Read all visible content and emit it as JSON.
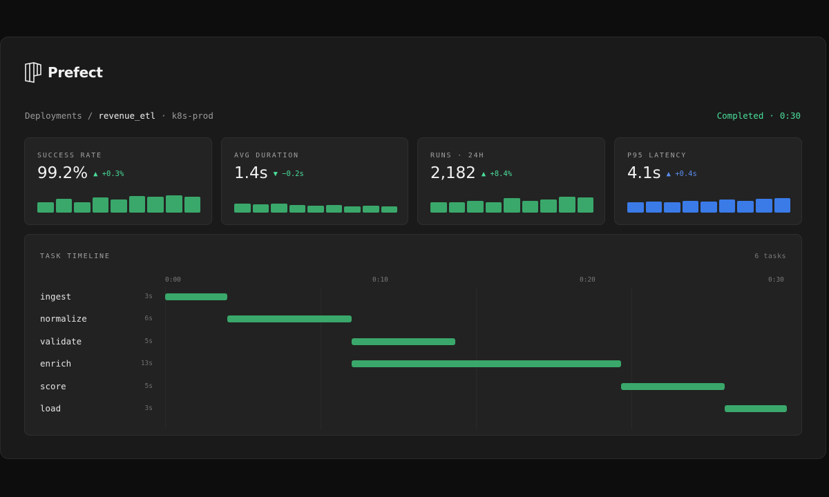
{
  "brand": {
    "name": "Prefect",
    "logo_icon": "prefect-logo-icon"
  },
  "breadcrumb": {
    "root": "Deployments",
    "separator": "/",
    "current": "revenue_etl",
    "dot": "·",
    "environment": "k8s-prod"
  },
  "status": {
    "state": "Completed",
    "dot": "·",
    "elapsed": "0:30",
    "color": "#4ade9a"
  },
  "metrics": [
    {
      "label": "SUCCESS RATE",
      "value": "99.2%",
      "delta": "▲ +0.3%",
      "direction": "up",
      "color": "#3aa86b",
      "spark": [
        0.55,
        0.7,
        0.55,
        0.8,
        0.68,
        0.85,
        0.82,
        0.9,
        0.82
      ]
    },
    {
      "label": "AVG DURATION",
      "value": "1.4s",
      "delta": "▼ −0.2s",
      "direction": "down",
      "color": "#3aa86b",
      "spark": [
        0.48,
        0.42,
        0.45,
        0.38,
        0.36,
        0.38,
        0.32,
        0.36,
        0.32
      ]
    },
    {
      "label": "RUNS · 24H",
      "value": "2,182",
      "delta": "▲ +8.4%",
      "direction": "up",
      "color": "#3aa86b",
      "spark": [
        0.52,
        0.55,
        0.62,
        0.52,
        0.75,
        0.6,
        0.68,
        0.82,
        0.78
      ]
    },
    {
      "label": "P95 LATENCY",
      "value": "4.1s",
      "delta": "▲ +0.4s",
      "direction": "up-blue",
      "color": "#3b7be8",
      "spark": [
        0.52,
        0.58,
        0.52,
        0.62,
        0.58,
        0.68,
        0.6,
        0.72,
        0.75
      ]
    }
  ],
  "timeline": {
    "title": "TASK TIMELINE",
    "count": "6 tasks",
    "ticks": [
      "0:00",
      "0:10",
      "0:20",
      "0:30"
    ],
    "bar_color": "#3aa86b",
    "tasks": [
      {
        "name": "ingest",
        "duration": "3s",
        "start": 0,
        "length": 3
      },
      {
        "name": "normalize",
        "duration": "6s",
        "start": 3,
        "length": 6
      },
      {
        "name": "validate",
        "duration": "5s",
        "start": 9,
        "length": 5
      },
      {
        "name": "enrich",
        "duration": "13s",
        "start": 9,
        "length": 13
      },
      {
        "name": "score",
        "duration": "5s",
        "start": 22,
        "length": 5
      },
      {
        "name": "load",
        "duration": "3s",
        "start": 27,
        "length": 3
      }
    ]
  }
}
